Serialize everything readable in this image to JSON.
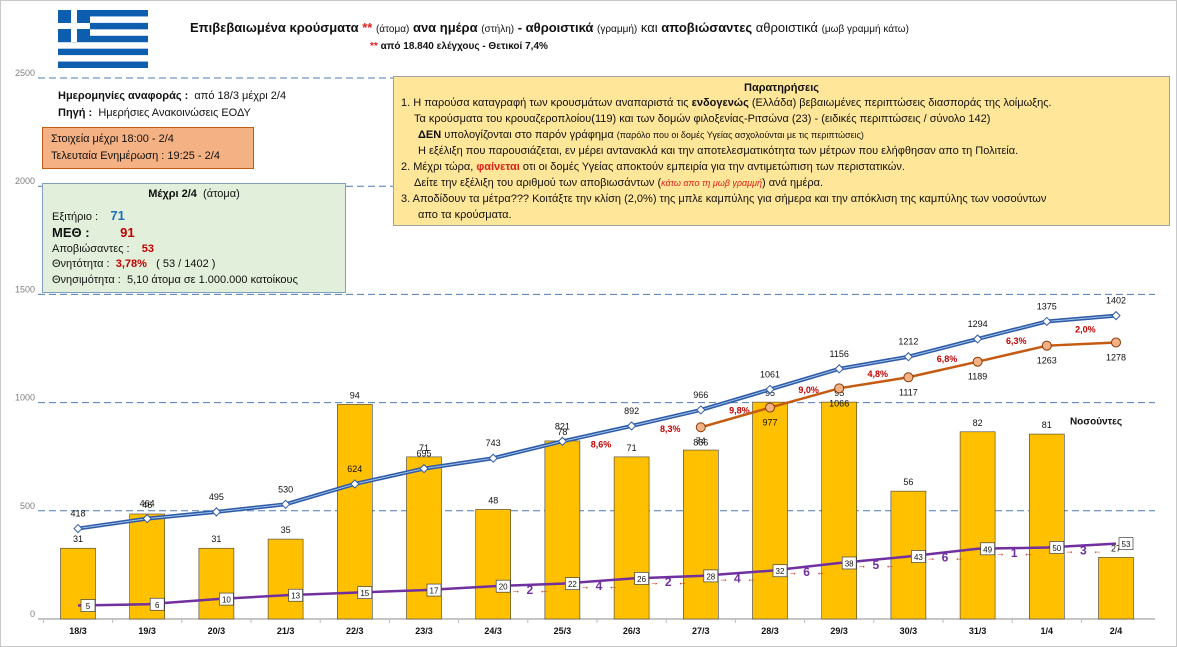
{
  "header": {
    "title_parts": [
      "Επιβεβαιωμένα κρούσματα",
      "**",
      "(άτομα)",
      "ανα ημέρα",
      "(στήλη)",
      "- αθροιστικά",
      "(γραμμή)",
      "και",
      "αποβιώσαντες",
      "αθροιστικά",
      "(μωβ γραμμή κάτω)"
    ],
    "subtitle_star": "**",
    "subtitle": "από 18.840 ελέγχους - Θετικοί 7,4%"
  },
  "info": {
    "dates_label": "Ημερομηνίες αναφοράς :",
    "dates_value": "από 18/3 μέχρι 2/4",
    "source_label": "Πηγή :",
    "source_value": "Ημερήσιες Ανακοινώσεις ΕΟΔΥ"
  },
  "update_box": {
    "line1": "Στοιχεία μέχρι  18:00 - 2/4",
    "line2": "Τελευταία Ενημέρωση  : 19:25 - 2/4"
  },
  "summary": {
    "heading": "Μέχρι 2/4",
    "heading_unit": "(άτομα)",
    "discharged_label": "Εξιτήριο :",
    "discharged_value": "71",
    "icu_label": "ΜΕΘ :",
    "icu_value": "91",
    "deaths_label": "Αποβιώσαντες :",
    "deaths_value": "53",
    "mortality_label": "Θνητότητα :",
    "mortality_value": "3,78%",
    "mortality_detail": "( 53 / 1402 )",
    "death_rate_label": "Θνησιμότητα :",
    "death_rate_value": "5,10 άτομα σε 1.000.000 κατοίκους"
  },
  "notes": {
    "heading": "Παρατηρήσεις",
    "n1_a": "1.  Η παρούσα καταγραφή των κρουσμάτων αναπαριστά τις",
    "n1_b": "ενδογενώς",
    "n1_c": "(Ελλάδα) βεβαιωμένες περιπτώσεις διασποράς της λοίμωξης.",
    "n1_line2": "Τα κρούσματα του κρουαζερoπλοίου(119) και των δομών φιλοξενίας-Ριτσώνα  (23) -  (ειδικές περιπτώσεις / σύνολο 142)",
    "n1_line3_bold": "ΔΕΝ",
    "n1_line3": "υπολογίζονται στο παρόν γράφημα",
    "n1_line3_small": "(παρόλο που οι δομές Υγείας ασχολούνται με τις περιπτώσεις)",
    "n1_line4": "Η εξέλιξη που παρουσιάζεται, εν μέρει αντανακλά και την αποτελεσματικότητα των μέτρων που ελήφθησαν απο τη Πολιτεία.",
    "n2_a": "2.  Μέχρι τώρα,",
    "n2_b": "φαίνεται",
    "n2_c": "οτι οι δομές Υγείας αποκτούν εμπειρία για την αντιμετώπιση των περιστατικών.",
    "n2_line2_a": "Δείτε την εξέλιξη του αριθμού των αποβιωσάντων (",
    "n2_line2_b": "κάτω απο τη μωβ γραμμή",
    "n2_line2_c": ") ανά ημέρα.",
    "n3": "3.  Αποδίδουν τα μέτρα??? Κοιτάξτε την κλίση (2,0%) της μπλε καμπύλης για σήμερα και την απόκλιση της καμπύλης των νοσούντων",
    "n3_line2": "απο τα κρούσματα."
  },
  "colors": {
    "bar": "#ffc000",
    "cumulative_line": "#2f5aa8",
    "active_line": "#c55a11",
    "deaths_line": "#7030a0",
    "growth_text": "#c00000",
    "grid": "#4f7cb0"
  },
  "chart_data": {
    "type": "bar+line",
    "categories": [
      "18/3",
      "19/3",
      "20/3",
      "21/3",
      "22/3",
      "23/3",
      "24/3",
      "25/3",
      "26/3",
      "27/3",
      "28/3",
      "29/3",
      "30/3",
      "31/3",
      "1/4",
      "2/4"
    ],
    "y_ticks": [
      "0",
      "500",
      "1000",
      "1500",
      "2000",
      "2500"
    ],
    "ylim": [
      0,
      2500
    ],
    "series": [
      {
        "name": "Daily cases",
        "kind": "bar",
        "values": [
          31,
          46,
          31,
          35,
          94,
          71,
          48,
          78,
          71,
          74,
          95,
          95,
          56,
          82,
          81,
          27
        ]
      },
      {
        "name": "Cumulative cases",
        "kind": "line",
        "values": [
          418,
          464,
          495,
          530,
          624,
          695,
          743,
          821,
          892,
          966,
          1061,
          1156,
          1212,
          1294,
          1375,
          1402
        ]
      },
      {
        "name": "Deaths cumulative",
        "kind": "line",
        "values": [
          5,
          6,
          10,
          13,
          15,
          17,
          20,
          22,
          26,
          28,
          32,
          38,
          43,
          49,
          50,
          53
        ]
      }
    ],
    "active": {
      "label": "Νοσούντες",
      "start_index": 9,
      "values": [
        886,
        977,
        1066,
        1117,
        1189,
        1263,
        1278
      ]
    },
    "growth_labels": [
      {
        "index": 8,
        "text": "8,6%"
      },
      {
        "index": 9,
        "text": "8,3%"
      },
      {
        "index": 10,
        "text": "9,8%"
      },
      {
        "index": 11,
        "text": "9,0%"
      },
      {
        "index": 12,
        "text": "4,8%"
      },
      {
        "index": 13,
        "text": "6,8%"
      },
      {
        "index": 14,
        "text": "6,3%"
      },
      {
        "index": 15,
        "text": "2,0%"
      }
    ],
    "daily_deaths_labels": [
      {
        "index": 7,
        "text": "2"
      },
      {
        "index": 8,
        "text": "4"
      },
      {
        "index": 9,
        "text": "2"
      },
      {
        "index": 10,
        "text": "4"
      },
      {
        "index": 11,
        "text": "6"
      },
      {
        "index": 12,
        "text": "5"
      },
      {
        "index": 13,
        "text": "6"
      },
      {
        "index": 14,
        "text": "1"
      },
      {
        "index": 15,
        "text": "3"
      }
    ]
  }
}
